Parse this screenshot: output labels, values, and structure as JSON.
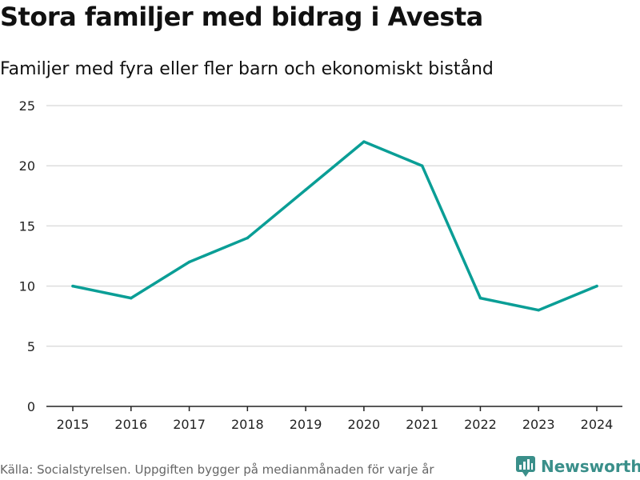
{
  "title": "Stora familjer med bidrag i Avesta",
  "subtitle": "Familjer med fyra eller fler barn och ekonomiskt bistånd",
  "footer": {
    "source": "Källa: Socialstyrelsen. Uppgiften bygger på medianmånaden för varje år",
    "brand": "Newsworthy"
  },
  "colors": {
    "line": "#0a9e96",
    "grid": "#dddddd",
    "axis": "#222222",
    "brand": "#3a8f8a"
  },
  "icons": {
    "brand": "newsworthy-logo-icon"
  },
  "chart_data": {
    "type": "line",
    "title": "Stora familjer med bidrag i Avesta",
    "subtitle": "Familjer med fyra eller fler barn och ekonomiskt bistånd",
    "xlabel": "",
    "ylabel": "",
    "categories": [
      "2015",
      "2016",
      "2017",
      "2018",
      "2019",
      "2020",
      "2021",
      "2022",
      "2023",
      "2024"
    ],
    "series": [
      {
        "name": "Familjer med fyra eller fler barn och ekonomiskt bistånd",
        "values": [
          10,
          9,
          12,
          14,
          18,
          22,
          20,
          9,
          8,
          10
        ]
      }
    ],
    "ylim": [
      0,
      25
    ],
    "yticks": [
      0,
      5,
      10,
      15,
      20,
      25
    ],
    "grid": true,
    "legend": "none"
  }
}
